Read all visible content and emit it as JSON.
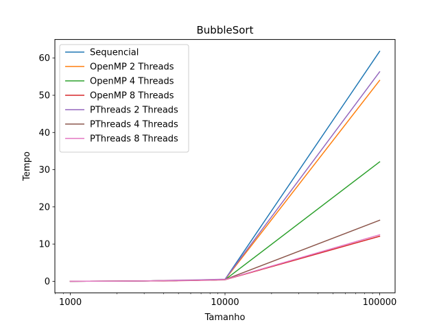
{
  "chart_data": {
    "type": "line",
    "title": "BubbleSort",
    "xlabel": "Tamanho",
    "ylabel": "Tempo",
    "xscale": "log",
    "x": [
      1000,
      2000,
      3000,
      4000,
      5000,
      6000,
      7000,
      8000,
      9000,
      10000,
      100000
    ],
    "xticks": [
      1000,
      10000,
      100000
    ],
    "xtick_labels": [
      "1000",
      "10000",
      "100000"
    ],
    "xlim": [
      794,
      125893
    ],
    "ylim": [
      -3.1,
      65
    ],
    "yticks": [
      0,
      10,
      20,
      30,
      40,
      50,
      60
    ],
    "ytick_labels": [
      "0",
      "10",
      "20",
      "30",
      "40",
      "50",
      "60"
    ],
    "grid": false,
    "legend_position": "top-left",
    "series": [
      {
        "name": "Sequencial",
        "color": "#1f77b4",
        "values": [
          0.0,
          0.05,
          0.1,
          0.15,
          0.2,
          0.25,
          0.3,
          0.35,
          0.4,
          0.5,
          61.8
        ]
      },
      {
        "name": "OpenMP 2 Threads",
        "color": "#ff7f0e",
        "values": [
          0.0,
          0.05,
          0.1,
          0.15,
          0.2,
          0.25,
          0.3,
          0.35,
          0.4,
          0.45,
          54.0
        ]
      },
      {
        "name": "OpenMP 4 Threads",
        "color": "#2ca02c",
        "values": [
          0.0,
          0.05,
          0.1,
          0.15,
          0.2,
          0.25,
          0.3,
          0.35,
          0.4,
          0.4,
          32.1
        ]
      },
      {
        "name": "OpenMP 8 Threads",
        "color": "#d62728",
        "values": [
          0.0,
          0.05,
          0.1,
          0.1,
          0.15,
          0.2,
          0.25,
          0.3,
          0.35,
          0.4,
          12.1
        ]
      },
      {
        "name": "PThreads 2 Threads",
        "color": "#9467bd",
        "values": [
          0.0,
          0.05,
          0.1,
          0.2,
          0.3,
          0.35,
          0.4,
          0.45,
          0.5,
          0.55,
          56.3
        ]
      },
      {
        "name": "PThreads 4 Threads",
        "color": "#8c564b",
        "values": [
          0.0,
          0.05,
          0.1,
          0.15,
          0.2,
          0.25,
          0.3,
          0.35,
          0.4,
          0.45,
          16.4
        ]
      },
      {
        "name": "PThreads 8 Threads",
        "color": "#e377c2",
        "values": [
          0.0,
          0.05,
          0.1,
          0.15,
          0.2,
          0.25,
          0.3,
          0.35,
          0.4,
          0.45,
          12.5
        ]
      }
    ]
  }
}
